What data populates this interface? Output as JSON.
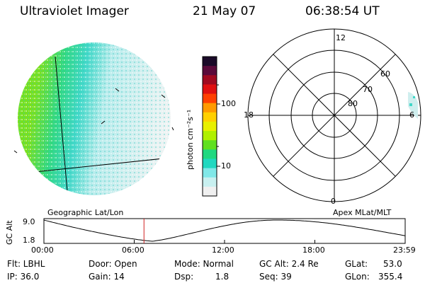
{
  "header": {
    "instrument": "Ultraviolet Imager",
    "date": "21 May 07",
    "time": "06:38:54 UT"
  },
  "colorbar": {
    "unit_label": "photon cm⁻²s⁻¹",
    "ticks": [
      "100",
      "10"
    ],
    "colors": [
      "#1a0a28",
      "#5a0a3a",
      "#a00a20",
      "#e01010",
      "#ff4000",
      "#ff9a00",
      "#ffd000",
      "#e8f000",
      "#b0f000",
      "#60e020",
      "#20d880",
      "#20d8c0",
      "#80e8e8",
      "#c8f0f0",
      "#f0f0f0"
    ]
  },
  "geo_panel": {
    "label": "Geographic Lat/Lon"
  },
  "polar_panel": {
    "label": "Apex MLat/MLT",
    "mlt_labels": {
      "top": "12",
      "left": "18",
      "right": "6",
      "bottom": "0"
    },
    "lat_labels": [
      "60",
      "70",
      "80"
    ]
  },
  "altitude_plot": {
    "ylabel": "GC Alt",
    "yticks": [
      "9.0",
      "1.8"
    ],
    "xticks": [
      "00:00",
      "06:00",
      "12:00",
      "18:00",
      "23:59"
    ],
    "current_time_hours": 6.648
  },
  "status": {
    "filter": "Flt:  LBHL",
    "door": "Door:  Open",
    "mode": "Mode:  Normal",
    "gc_alt": "GC Alt:  2.4 Re",
    "glat": "GLat:",
    "glat_value": "53.0",
    "ip": "IP:  36.0",
    "gain": "Gain:  14",
    "dsp": "Dsp:",
    "dsp_value": "1.8",
    "seq": "Seq:  39",
    "glon": "GLon:",
    "glon_value": "355.4"
  }
}
